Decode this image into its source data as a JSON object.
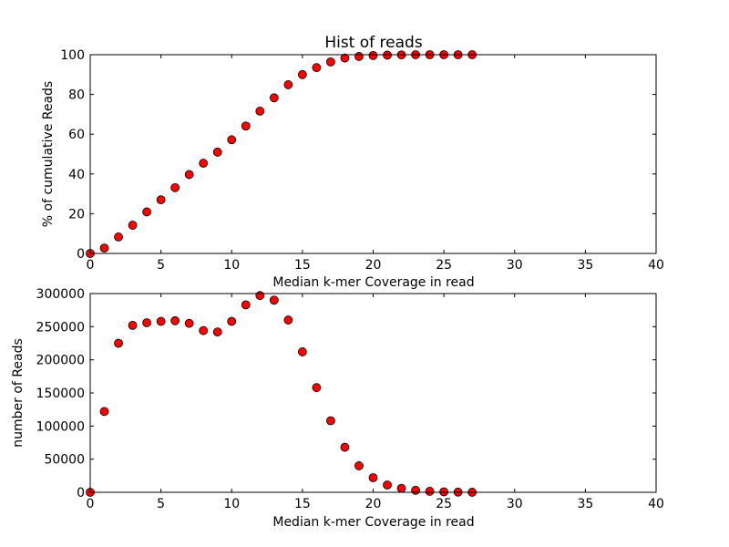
{
  "chart_data": [
    {
      "type": "scatter",
      "title": "Hist of reads",
      "xlabel": "Median k-mer Coverage in read",
      "ylabel": "% of cumulative Reads",
      "xlim": [
        0,
        40
      ],
      "ylim": [
        0,
        100
      ],
      "xticks": [
        0,
        5,
        10,
        15,
        20,
        25,
        30,
        35,
        40
      ],
      "yticks": [
        0,
        20,
        40,
        60,
        80,
        100
      ],
      "grid": false,
      "marker_color": "#ff0000",
      "series": [
        {
          "x": [
            0,
            1,
            2,
            3,
            4,
            5,
            6,
            7,
            8,
            9,
            10,
            11,
            12,
            13,
            14,
            15,
            16,
            17,
            18,
            19,
            20,
            21,
            22,
            23,
            24,
            25,
            26,
            27
          ],
          "values": [
            0,
            2.7,
            8.3,
            14.2,
            20.9,
            27.0,
            33.1,
            39.7,
            45.4,
            51.0,
            57.2,
            64.1,
            71.6,
            78.3,
            84.9,
            90.0,
            93.5,
            96.4,
            98.3,
            99.1,
            99.6,
            99.8,
            99.9,
            100,
            100,
            100,
            100,
            100
          ]
        }
      ]
    },
    {
      "type": "scatter",
      "title": "",
      "xlabel": "Median k-mer Coverage in read",
      "ylabel": "number of Reads",
      "xlim": [
        0,
        40
      ],
      "ylim": [
        0,
        300000
      ],
      "xticks": [
        0,
        5,
        10,
        15,
        20,
        25,
        30,
        35,
        40
      ],
      "yticks": [
        0,
        50000,
        100000,
        150000,
        200000,
        250000,
        300000
      ],
      "grid": false,
      "marker_color": "#ff0000",
      "series": [
        {
          "x": [
            0,
            1,
            2,
            3,
            4,
            5,
            6,
            7,
            8,
            9,
            10,
            11,
            12,
            13,
            14,
            15,
            16,
            17,
            18,
            19,
            20,
            21,
            22,
            23,
            24,
            25,
            26,
            27
          ],
          "values": [
            0,
            122000,
            225000,
            252000,
            256000,
            258000,
            259000,
            255000,
            244000,
            242000,
            258000,
            283000,
            297000,
            290000,
            260000,
            212000,
            158000,
            108000,
            68000,
            40000,
            22000,
            11000,
            6000,
            3000,
            1500,
            700,
            300,
            100
          ]
        }
      ]
    }
  ]
}
